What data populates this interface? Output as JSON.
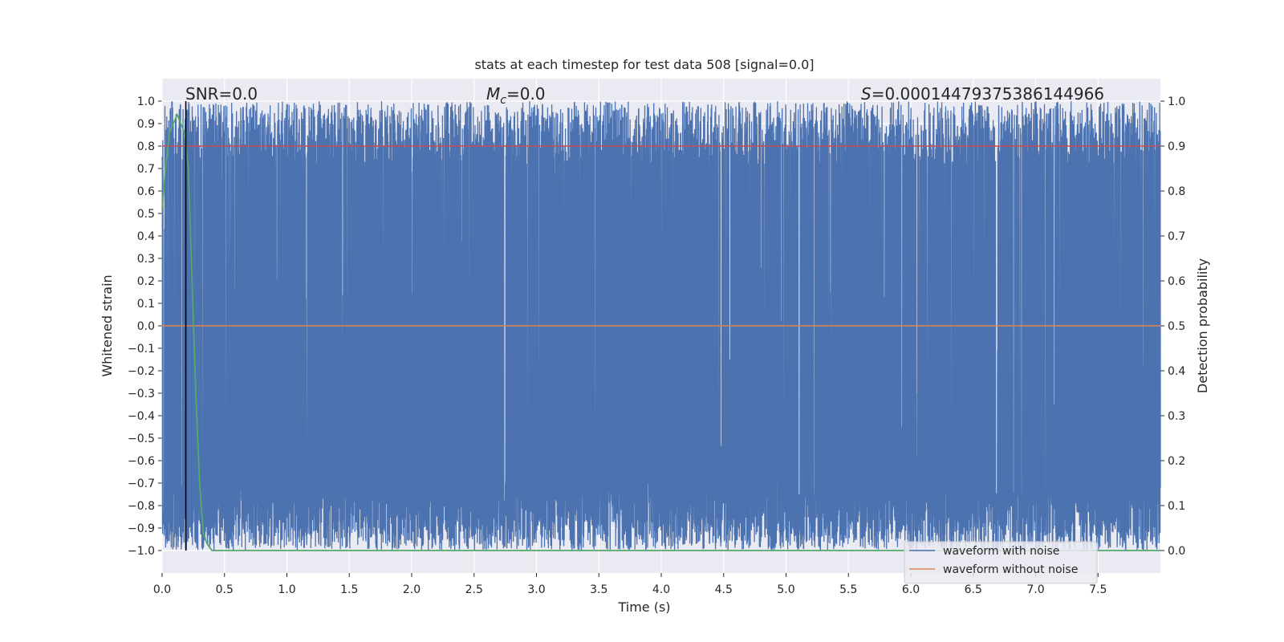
{
  "chart_data": {
    "type": "line",
    "title": "stats at each timestep for test data 508 [signal=0.0]",
    "xlabel": "Time (s)",
    "ylabel_left": "Whitened strain",
    "ylabel_right": "Detection probability",
    "xlim": [
      0.0,
      8.0
    ],
    "ylim_left": [
      -1.1,
      1.1
    ],
    "ylim_right": [
      -0.05,
      1.05
    ],
    "xticks": [
      "0.0",
      "0.5",
      "1.0",
      "1.5",
      "2.0",
      "2.5",
      "3.0",
      "3.5",
      "4.0",
      "4.5",
      "5.0",
      "5.5",
      "6.0",
      "6.5",
      "7.0",
      "7.5"
    ],
    "yticks_left": [
      "1.0",
      "0.9",
      "0.8",
      "0.7",
      "0.6",
      "0.5",
      "0.4",
      "0.3",
      "0.2",
      "0.1",
      "0.0",
      "−0.1",
      "−0.2",
      "−0.3",
      "−0.4",
      "−0.5",
      "−0.6",
      "−0.7",
      "−0.8",
      "−0.9",
      "−1.0"
    ],
    "yticks_right": [
      "1.0",
      "0.9",
      "0.8",
      "0.7",
      "0.6",
      "0.5",
      "0.4",
      "0.3",
      "0.2",
      "0.1",
      "0.0"
    ],
    "grid": true,
    "annotations": {
      "snr": "SNR=0.0",
      "mc_symbol": "M",
      "mc_sub": "c",
      "mc_value": "=0.0",
      "s_symbol": "S",
      "s_value": "=0.00014479375386144966"
    },
    "legend": {
      "placement": "lower-right",
      "entries": [
        {
          "label": "waveform with noise",
          "color": "#4c72b0"
        },
        {
          "label": "waveform without noise",
          "color": "#dd8452"
        }
      ]
    },
    "series": [
      {
        "name": "waveform with noise",
        "axis": "left",
        "color": "#4c72b0",
        "description_values": "normalized whitened noise filling approximately -1.0 to 1.0 across 0 to 8 s",
        "range": [
          -1.0,
          1.0
        ]
      },
      {
        "name": "waveform without noise",
        "axis": "left",
        "color": "#dd8452",
        "x": [
          0.0,
          8.0
        ],
        "y": [
          0.0,
          0.0
        ]
      },
      {
        "name": "",
        "axis": "right",
        "color": "#55a868",
        "x": [
          0.0,
          0.03,
          0.06,
          0.09,
          0.12,
          0.15,
          0.18,
          0.21,
          0.24,
          0.27,
          0.3,
          0.33,
          0.36,
          0.4,
          8.0
        ],
        "y": [
          0.76,
          0.86,
          0.93,
          0.95,
          0.97,
          0.95,
          0.93,
          0.85,
          0.6,
          0.35,
          0.15,
          0.04,
          0.015,
          0.0,
          0.0
        ]
      },
      {
        "name": "",
        "axis": "right",
        "color": "#c44e52",
        "x": [
          0.0,
          8.0
        ],
        "y": [
          0.9,
          0.9
        ]
      }
    ],
    "vline": {
      "x": 0.19,
      "color": "#000000"
    }
  }
}
